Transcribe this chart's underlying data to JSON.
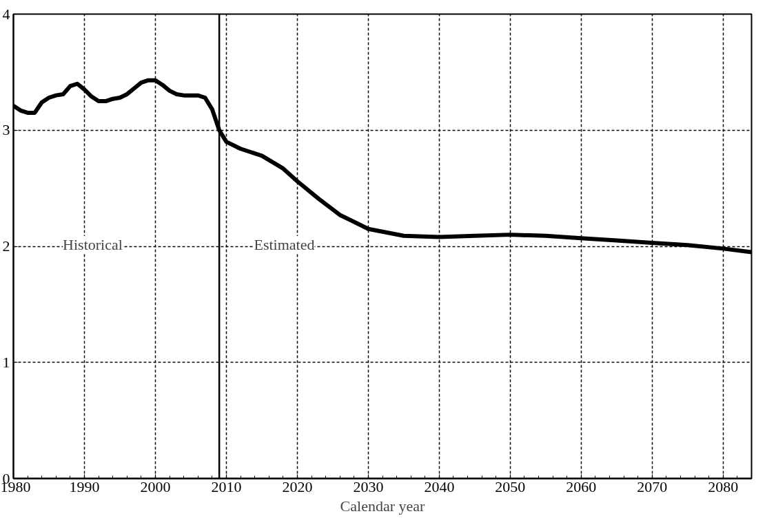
{
  "chart_data": {
    "type": "line",
    "xlabel": "Calendar year",
    "x": [
      1980,
      1981,
      1982,
      1983,
      1984,
      1985,
      1986,
      1987,
      1988,
      1989,
      1990,
      1991,
      1992,
      1993,
      1994,
      1995,
      1996,
      1997,
      1998,
      1999,
      2000,
      2001,
      2002,
      2003,
      2004,
      2005,
      2006,
      2007,
      2008,
      2009,
      2010,
      2012,
      2015,
      2018,
      2020,
      2023,
      2026,
      2030,
      2035,
      2040,
      2045,
      2050,
      2055,
      2060,
      2065,
      2070,
      2075,
      2080,
      2084
    ],
    "series": [
      {
        "color": "#000000",
        "values": [
          3.21,
          3.17,
          3.15,
          3.15,
          3.24,
          3.28,
          3.3,
          3.31,
          3.38,
          3.4,
          3.35,
          3.29,
          3.25,
          3.25,
          3.27,
          3.28,
          3.31,
          3.36,
          3.41,
          3.43,
          3.43,
          3.39,
          3.34,
          3.31,
          3.3,
          3.3,
          3.3,
          3.28,
          3.18,
          3.0,
          2.9,
          2.84,
          2.78,
          2.67,
          2.56,
          2.41,
          2.27,
          2.15,
          2.09,
          2.08,
          2.09,
          2.1,
          2.09,
          2.07,
          2.05,
          2.03,
          2.01,
          1.98,
          1.95
        ]
      }
    ],
    "xlim": [
      1980,
      2084
    ],
    "xticks": [
      1980,
      1990,
      2000,
      2010,
      2020,
      2030,
      2040,
      2050,
      2060,
      2070,
      2080
    ],
    "ylim": [
      0,
      4
    ],
    "yticks": [
      0,
      1,
      2,
      3,
      4
    ],
    "grid": true,
    "marker": "none",
    "line_style": "solid",
    "ref_lines": [
      {
        "axis": "x",
        "value": 2009,
        "color": "#000000",
        "line_style": "solid"
      }
    ],
    "annotations": [
      "Historical",
      "Estimated"
    ]
  }
}
